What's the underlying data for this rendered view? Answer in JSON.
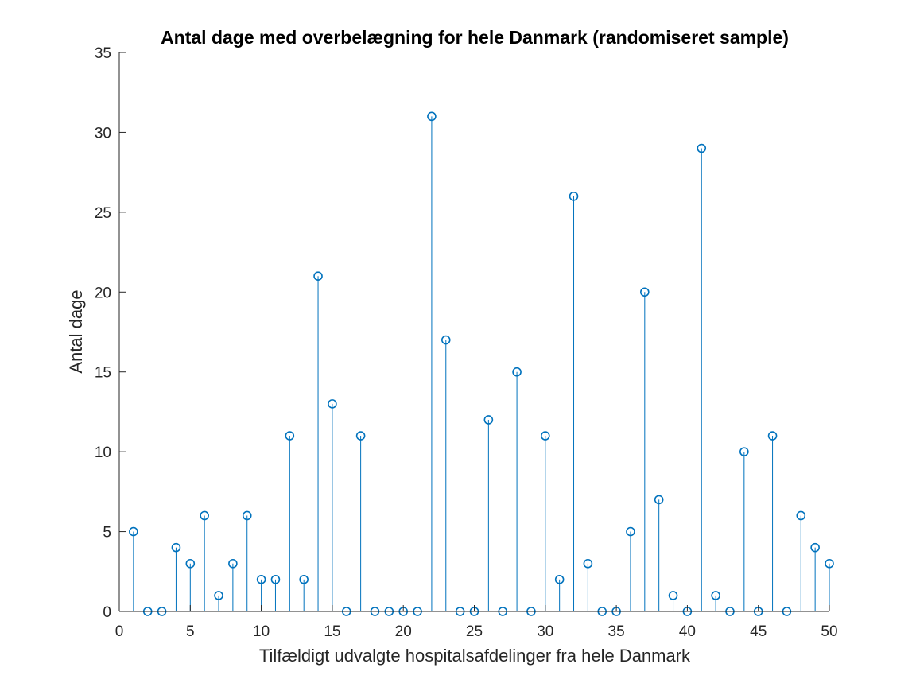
{
  "chart_data": {
    "type": "stem",
    "title": "Antal dage med overbelægning for hele Danmark (randomiseret sample)",
    "xlabel": "Tilfældigt udvalgte hospitalsafdelinger fra hele Danmark",
    "ylabel": "Antal dage",
    "xlim": [
      0,
      50
    ],
    "ylim": [
      0,
      35
    ],
    "xticks": [
      0,
      5,
      10,
      15,
      20,
      25,
      30,
      35,
      40,
      45,
      50
    ],
    "yticks": [
      0,
      5,
      10,
      15,
      20,
      25,
      30,
      35
    ],
    "grid": false,
    "x": [
      1,
      2,
      3,
      4,
      5,
      6,
      7,
      8,
      9,
      10,
      11,
      12,
      13,
      14,
      15,
      16,
      17,
      18,
      19,
      20,
      21,
      22,
      23,
      24,
      25,
      26,
      27,
      28,
      29,
      30,
      31,
      32,
      33,
      34,
      35,
      36,
      37,
      38,
      39,
      40,
      41,
      42,
      43,
      44,
      45,
      46,
      47,
      48,
      49,
      50
    ],
    "values": [
      5,
      0,
      0,
      4,
      3,
      6,
      1,
      3,
      6,
      2,
      2,
      11,
      2,
      21,
      13,
      0,
      11,
      0,
      0,
      0,
      0,
      31,
      17,
      0,
      0,
      12,
      0,
      15,
      0,
      11,
      2,
      26,
      3,
      0,
      0,
      5,
      20,
      7,
      1,
      0,
      29,
      1,
      0,
      10,
      0,
      11,
      0,
      6,
      4,
      3
    ],
    "series_color": "#0072BD",
    "axis_color": "#262626"
  }
}
